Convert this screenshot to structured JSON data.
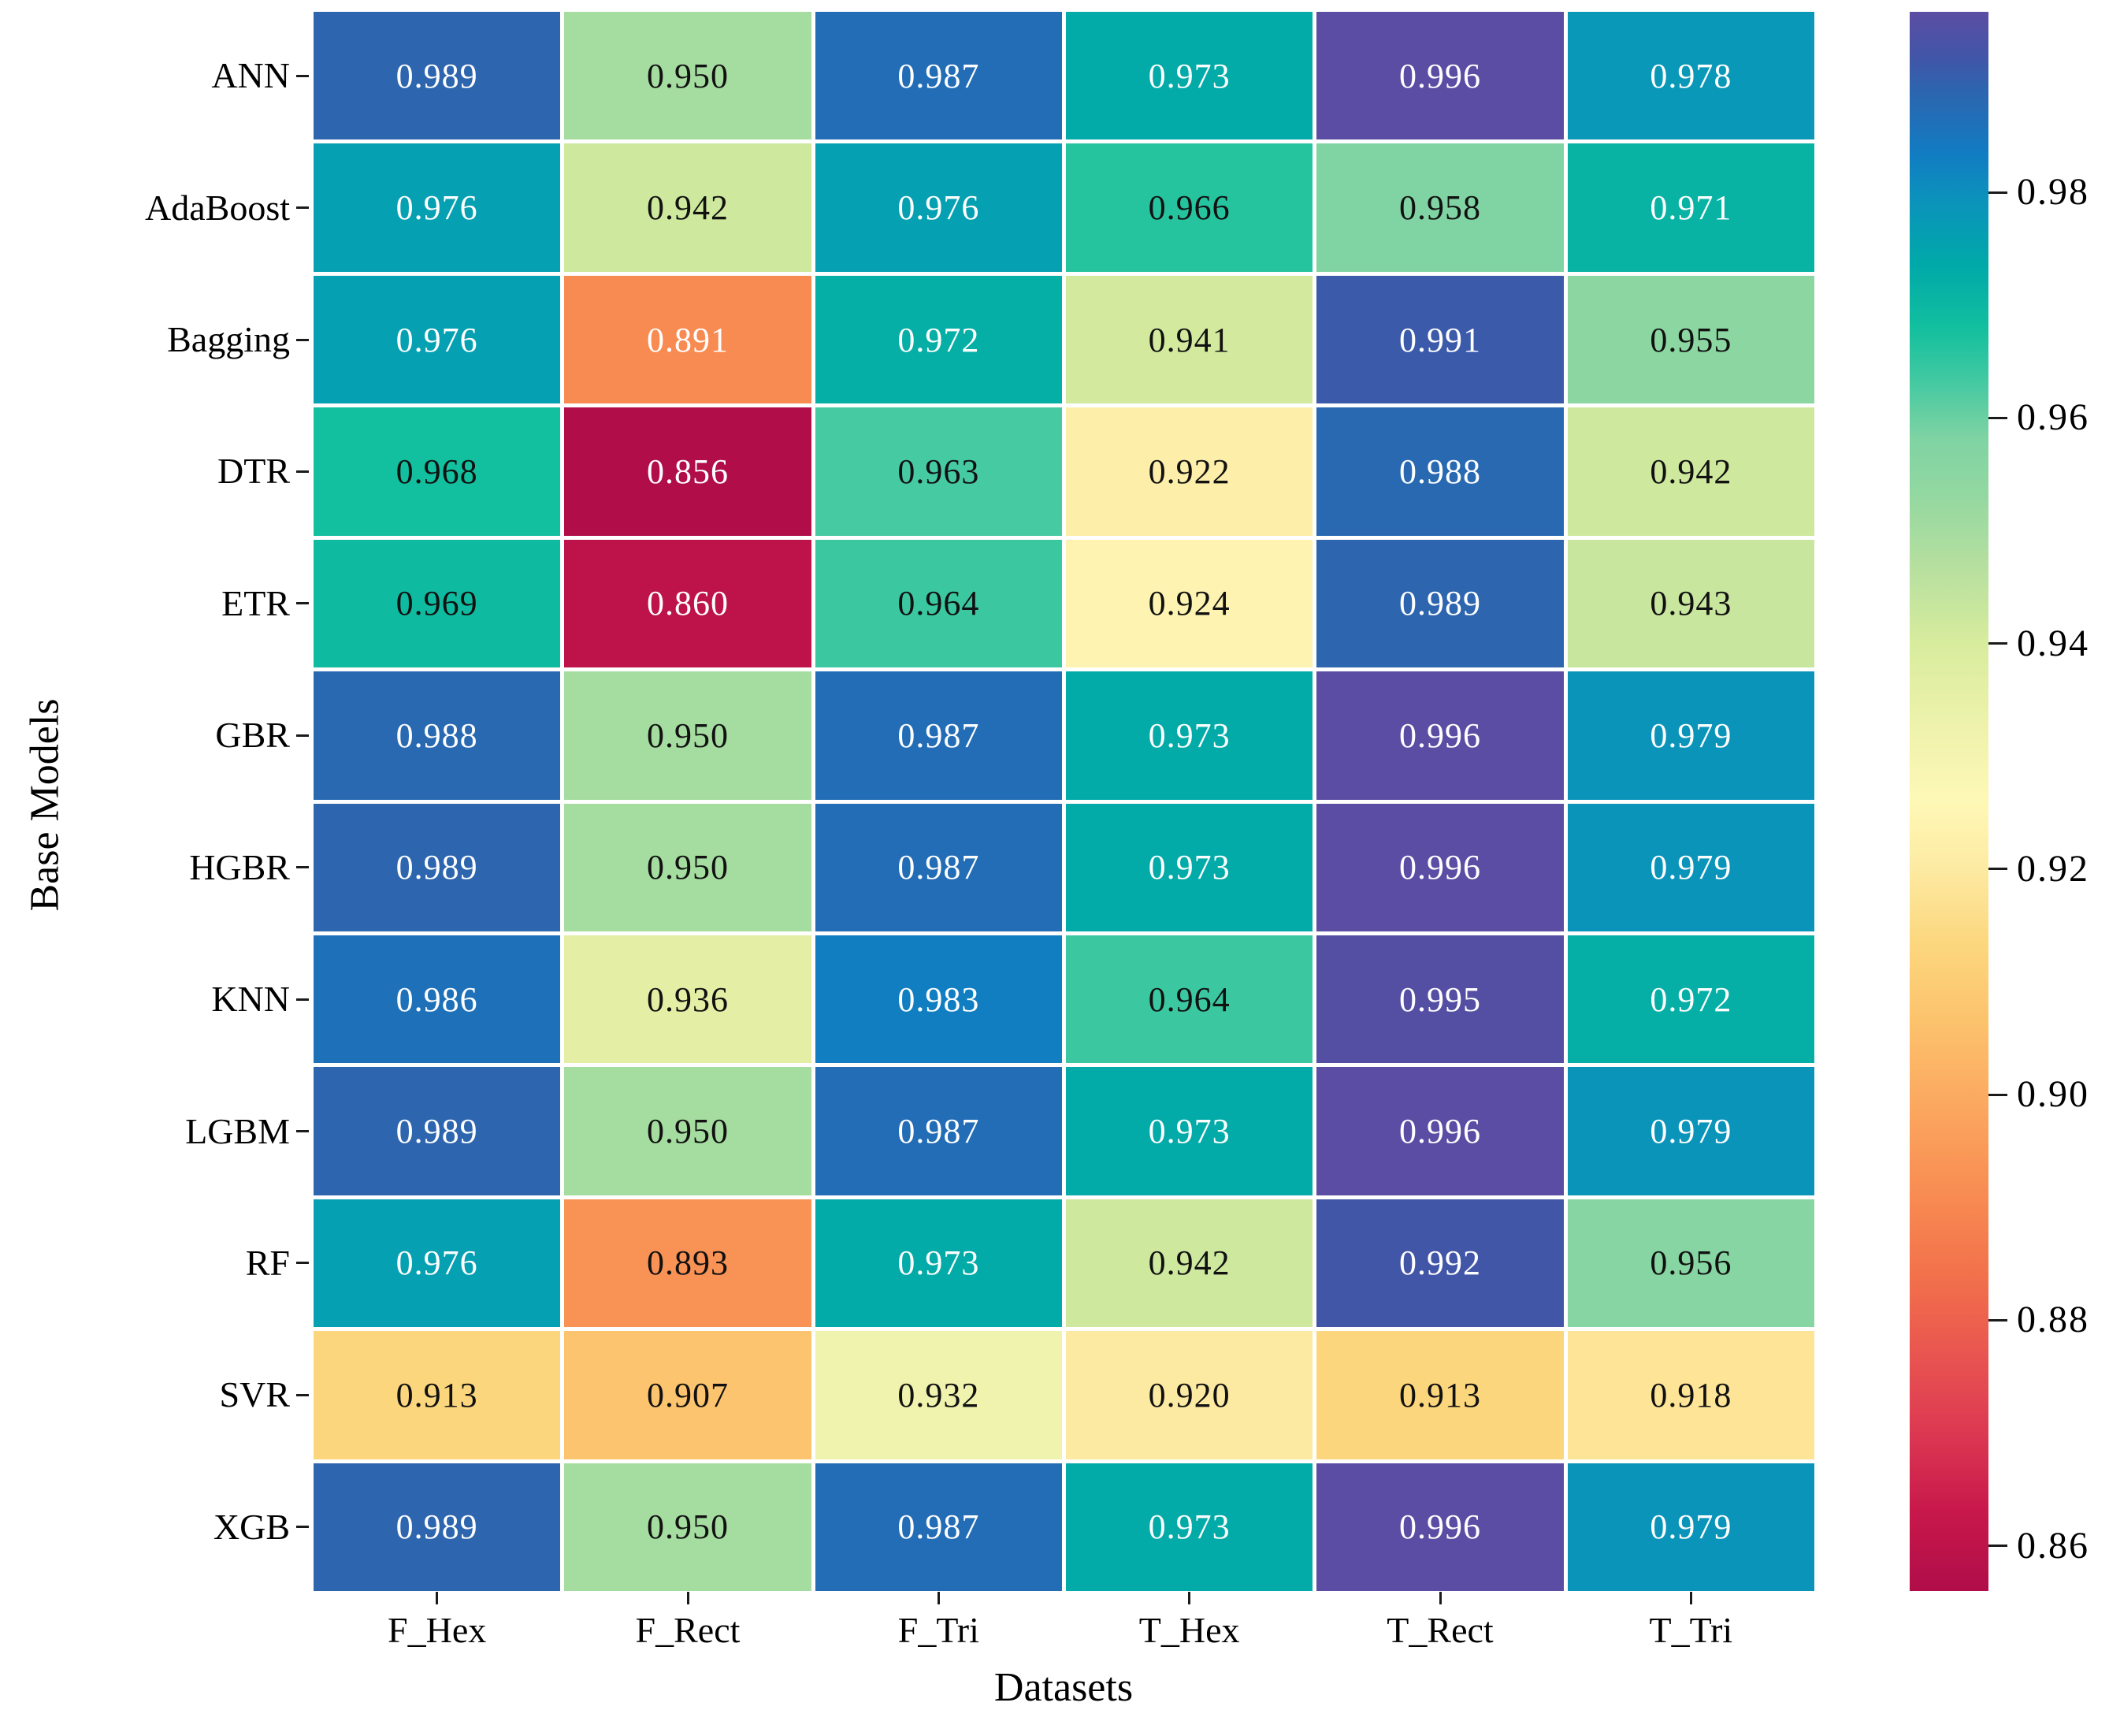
{
  "chart_data": {
    "type": "heatmap",
    "title": "",
    "xlabel": "Datasets",
    "ylabel": "Base Models",
    "columns": [
      "F_Hex",
      "F_Rect",
      "F_Tri",
      "T_Hex",
      "T_Rect",
      "T_Tri"
    ],
    "rows": [
      "ANN",
      "AdaBoost",
      "Bagging",
      "DTR",
      "ETR",
      "GBR",
      "HGBR",
      "KNN",
      "LGBM",
      "RF",
      "SVR",
      "XGB"
    ],
    "values": [
      [
        0.989,
        0.95,
        0.987,
        0.973,
        0.996,
        0.978
      ],
      [
        0.976,
        0.942,
        0.976,
        0.966,
        0.958,
        0.971
      ],
      [
        0.976,
        0.891,
        0.972,
        0.941,
        0.991,
        0.955
      ],
      [
        0.968,
        0.856,
        0.963,
        0.922,
        0.988,
        0.942
      ],
      [
        0.969,
        0.86,
        0.964,
        0.924,
        0.989,
        0.943
      ],
      [
        0.988,
        0.95,
        0.987,
        0.973,
        0.996,
        0.979
      ],
      [
        0.989,
        0.95,
        0.987,
        0.973,
        0.996,
        0.979
      ],
      [
        0.986,
        0.936,
        0.983,
        0.964,
        0.995,
        0.972
      ],
      [
        0.989,
        0.95,
        0.987,
        0.973,
        0.996,
        0.979
      ],
      [
        0.976,
        0.893,
        0.973,
        0.942,
        0.992,
        0.956
      ],
      [
        0.913,
        0.907,
        0.932,
        0.92,
        0.913,
        0.918
      ],
      [
        0.989,
        0.95,
        0.987,
        0.973,
        0.996,
        0.979
      ]
    ],
    "value_decimals": 3,
    "vmin": 0.856,
    "vmax": 0.996,
    "grid": false,
    "legend_position": "colorbar-right",
    "colorbar": {
      "ticks": [
        0.98,
        0.96,
        0.94,
        0.92,
        0.9,
        0.88,
        0.86
      ],
      "tick_labels": [
        "0.98",
        "0.96",
        "0.94",
        "0.92",
        "0.90",
        "0.88",
        "0.86"
      ]
    },
    "colormap": {
      "name": "spectral-reversed-saturated",
      "display_stops": [
        {
          "t": 0.0,
          "color": "#B00D49"
        },
        {
          "t": 0.05,
          "color": "#C8184B"
        },
        {
          "t": 0.1,
          "color": "#DC3852"
        },
        {
          "t": 0.15,
          "color": "#E95550"
        },
        {
          "t": 0.2,
          "color": "#F2714B"
        },
        {
          "t": 0.25,
          "color": "#F88B52"
        },
        {
          "t": 0.3,
          "color": "#FBA45E"
        },
        {
          "t": 0.36,
          "color": "#FCC26C"
        },
        {
          "t": 0.41,
          "color": "#FCD77E"
        },
        {
          "t": 0.46,
          "color": "#FDEBA4"
        },
        {
          "t": 0.5,
          "color": "#FEF8B6"
        },
        {
          "t": 0.55,
          "color": "#EDF2AB"
        },
        {
          "t": 0.6,
          "color": "#D8EC9E"
        },
        {
          "t": 0.65,
          "color": "#B5DF9F"
        },
        {
          "t": 0.7,
          "color": "#8FD7A1"
        },
        {
          "t": 0.73,
          "color": "#7FD3A3"
        },
        {
          "t": 0.77,
          "color": "#3DC8A1"
        },
        {
          "t": 0.8,
          "color": "#12BF9E"
        },
        {
          "t": 0.84,
          "color": "#00A9A9"
        },
        {
          "t": 0.88,
          "color": "#0B93BB"
        },
        {
          "t": 0.91,
          "color": "#117CC2"
        },
        {
          "t": 0.95,
          "color": "#2D65AF"
        },
        {
          "t": 0.97,
          "color": "#4156A8"
        },
        {
          "t": 1.0,
          "color": "#5B4DA3"
        }
      ],
      "reference_anchors": [
        "#9E0142",
        "#D53E4F",
        "#F46D43",
        "#FDAE61",
        "#FEE08B",
        "#FFFFBF",
        "#E6F598",
        "#ABDDA4",
        "#66C2A5",
        "#3288BD",
        "#5E4FA2"
      ],
      "text_luminance_threshold": 0.408,
      "annotation_colors": {
        "light": "#FFFFFF",
        "dark": "#111111"
      },
      "tick_color": "#1A1A1A",
      "background": "#FFFFFF"
    }
  }
}
